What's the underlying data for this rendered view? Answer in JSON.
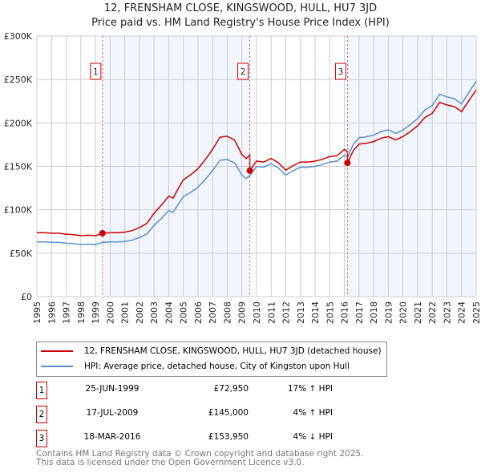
{
  "chart_data": {
    "type": "line",
    "title": "12, FRENSHAM CLOSE, KINGSWOOD, HULL, HU7 3JD",
    "subtitle": "Price paid vs. HM Land Registry's House Price Index (HPI)",
    "xlim": [
      1995,
      2025
    ],
    "ylim": [
      0,
      300000
    ],
    "x_ticks": [
      "1995",
      "1996",
      "1997",
      "1998",
      "1999",
      "2000",
      "2001",
      "2002",
      "2003",
      "2004",
      "2005",
      "2006",
      "2007",
      "2008",
      "2009",
      "2010",
      "2011",
      "2012",
      "2013",
      "2014",
      "2015",
      "2016",
      "2017",
      "2018",
      "2019",
      "2020",
      "2021",
      "2022",
      "2023",
      "2024",
      "2025"
    ],
    "y_ticks": [
      {
        "v": 0,
        "label": "£0"
      },
      {
        "v": 50000,
        "label": "£50K"
      },
      {
        "v": 100000,
        "label": "£100K"
      },
      {
        "v": 150000,
        "label": "£150K"
      },
      {
        "v": 200000,
        "label": "£200K"
      },
      {
        "v": 250000,
        "label": "£250K"
      },
      {
        "v": 300000,
        "label": "£300K"
      }
    ],
    "grid": true,
    "series": [
      {
        "name": "12, FRENSHAM CLOSE, KINGSWOOD, HULL, HU7 3JD (detached house)",
        "color": "#cc0000",
        "derived_from": "hpi_indexed_to_sales"
      },
      {
        "name": "HPI: Average price, detached house, City of Kingston upon Hull",
        "color": "#5b8fd0",
        "x": [
          1995,
          1995.5,
          1996,
          1996.5,
          1997,
          1997.5,
          1998,
          1998.5,
          1999,
          1999.48,
          2000,
          2000.5,
          2001,
          2001.5,
          2002,
          2002.5,
          2003,
          2003.5,
          2004,
          2004.3,
          2004.6,
          2005,
          2005.5,
          2006,
          2006.5,
          2007,
          2007.5,
          2008,
          2008.5,
          2009,
          2009.3,
          2009.54,
          2010,
          2010.5,
          2011,
          2011.5,
          2012,
          2012.5,
          2013,
          2013.5,
          2014,
          2014.5,
          2015,
          2015.5,
          2016,
          2016.21,
          2016.6,
          2017,
          2017.5,
          2018,
          2018.5,
          2019,
          2019.5,
          2020,
          2020.5,
          2021,
          2021.5,
          2022,
          2022.5,
          2023,
          2023.5,
          2024,
          2024.5,
          2025
        ],
        "y": [
          63000,
          63000,
          62500,
          62500,
          61500,
          61000,
          60000,
          60500,
          60000,
          62400,
          63000,
          63000,
          63500,
          65000,
          68000,
          72000,
          82000,
          90000,
          99000,
          97000,
          105000,
          115000,
          120000,
          126000,
          135000,
          145000,
          157000,
          158000,
          154000,
          140000,
          136000,
          139400,
          150000,
          149000,
          153000,
          148000,
          140000,
          145000,
          149000,
          149000,
          150000,
          152000,
          155000,
          156000,
          163000,
          160400,
          175000,
          183000,
          184000,
          186000,
          190000,
          192000,
          188000,
          192000,
          198000,
          205000,
          215000,
          220000,
          233000,
          230000,
          228000,
          222000,
          235000,
          248000
        ]
      }
    ],
    "sales": [
      {
        "n": "1",
        "date": "25-JUN-1999",
        "x": 1999.48,
        "price": 72950,
        "price_label": "£72,950",
        "hpi": "17% ↑ HPI"
      },
      {
        "n": "2",
        "date": "17-JUL-2009",
        "x": 2009.54,
        "price": 145000,
        "price_label": "£145,000",
        "hpi": "4% ↑ HPI"
      },
      {
        "n": "3",
        "date": "18-MAR-2016",
        "x": 2016.21,
        "price": 153950,
        "price_label": "£153,950",
        "hpi": "4% ↓ HPI"
      }
    ],
    "legend_placement": "below"
  },
  "footer": [
    "Contains HM Land Registry data © Crown copyright and database right 2025.",
    "This data is licensed under the Open Government Licence v3.0."
  ]
}
